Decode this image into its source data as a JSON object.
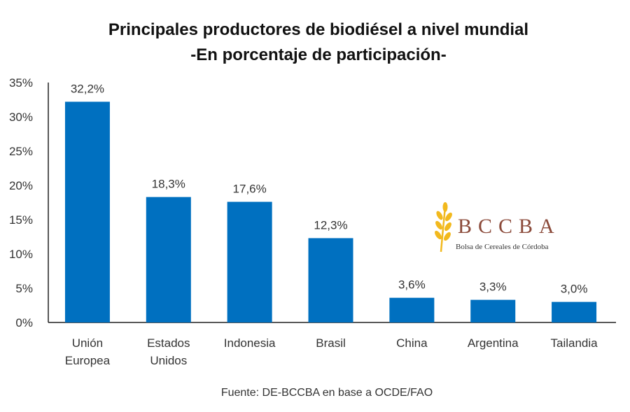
{
  "chart_data": {
    "type": "bar",
    "title": "Principales productores de biodiésel a nivel mundial",
    "subtitle": "-En porcentaje de participación-",
    "categories": [
      "Unión\nEuropea",
      "Estados\nUnidos",
      "Indonesia",
      "Brasil",
      "China",
      "Argentina",
      "Tailandia"
    ],
    "values": [
      32.2,
      18.3,
      17.6,
      12.3,
      3.6,
      3.3,
      3.0
    ],
    "data_labels": [
      "32,2%",
      "18,3%",
      "17,6%",
      "12,3%",
      "3,6%",
      "3,3%",
      "3,0%"
    ],
    "y_ticks": [
      0,
      5,
      10,
      15,
      20,
      25,
      30,
      35
    ],
    "y_tick_labels": [
      "0%",
      "5%",
      "10%",
      "15%",
      "20%",
      "25%",
      "30%",
      "35%"
    ],
    "ylim": [
      0,
      35
    ],
    "grid": false,
    "legend": "none",
    "bar_color": "#0070C0",
    "source": "Fuente: DE-BCCBA en base a OCDE/FAO"
  },
  "logo": {
    "name": "BCCBA",
    "tagline": "Bolsa de Cereales de Córdoba",
    "icon": "wheat-icon",
    "text_color": "#8B4A3A",
    "icon_color": "#F2B91E"
  }
}
